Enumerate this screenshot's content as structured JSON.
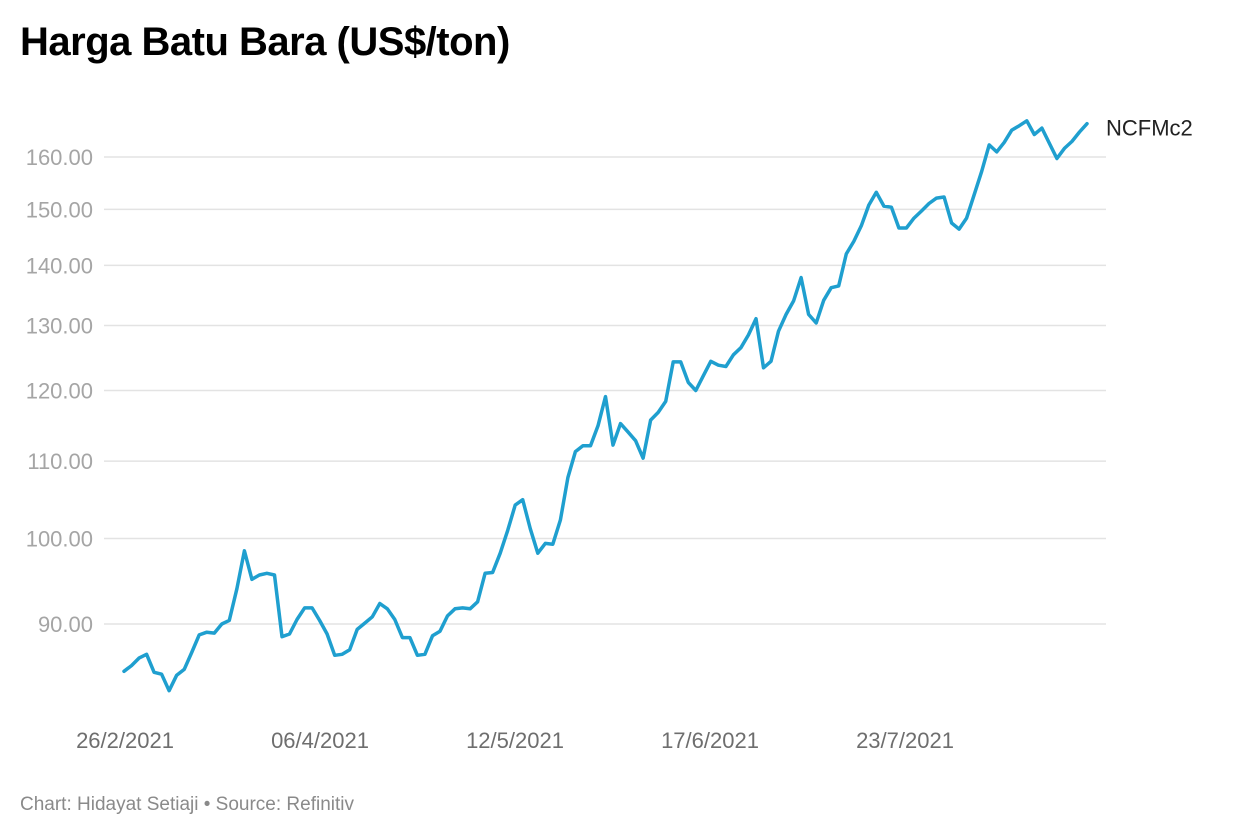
{
  "title": "Harga Batu Bara (US$/ton)",
  "footer": "Chart: Hidayat Setiaji • Source: Refinitiv",
  "chart_data": {
    "type": "line",
    "title": "Harga Batu Bara (US$/ton)",
    "xlabel": "",
    "ylabel": "",
    "y_scale": "log",
    "ylim": [
      82,
      168
    ],
    "grid": true,
    "legend": "none (direct label at line end)",
    "y_ticks": [
      90,
      100,
      110,
      120,
      130,
      140,
      150,
      160
    ],
    "y_tick_labels": [
      "90.00",
      "100.00",
      "110.00",
      "120.00",
      "130.00",
      "140.00",
      "150.00",
      "160.00"
    ],
    "x_tick_labels": [
      "26/2/2021",
      "06/4/2021",
      "12/5/2021",
      "17/6/2021",
      "23/7/2021"
    ],
    "color": "#1f9fcf",
    "series": [
      {
        "name": "NCFMc2",
        "values": [
          84.9,
          85.5,
          86.3,
          86.7,
          84.8,
          84.6,
          82.9,
          84.5,
          85.1,
          86.9,
          88.8,
          89.1,
          89.0,
          90.0,
          90.4,
          94.0,
          98.5,
          95.1,
          95.6,
          95.8,
          95.6,
          88.6,
          88.9,
          90.5,
          91.8,
          91.8,
          90.4,
          88.9,
          86.6,
          86.7,
          87.2,
          89.4,
          90.1,
          90.8,
          92.3,
          91.7,
          90.5,
          88.5,
          88.5,
          86.6,
          86.7,
          88.7,
          89.2,
          90.9,
          91.7,
          91.8,
          91.7,
          92.5,
          95.8,
          95.9,
          98.2,
          101.0,
          104.2,
          104.9,
          101.2,
          98.2,
          99.4,
          99.3,
          102.3,
          107.8,
          111.3,
          112.1,
          112.1,
          114.9,
          119.1,
          112.2,
          115.2,
          114.0,
          112.8,
          110.4,
          115.7,
          116.8,
          118.4,
          124.3,
          124.3,
          121.2,
          120.0,
          122.2,
          124.4,
          123.8,
          123.6,
          125.4,
          126.5,
          128.5,
          131.1,
          123.4,
          124.4,
          129.1,
          131.8,
          134.0,
          137.9,
          131.8,
          130.4,
          134.1,
          136.2,
          136.5,
          142.0,
          144.2,
          147.0,
          150.8,
          153.2,
          150.6,
          150.4,
          146.6,
          146.6,
          148.4,
          149.7,
          151.1,
          152.1,
          152.3,
          147.5,
          146.4,
          148.4,
          152.7,
          157.2,
          162.4,
          161.0,
          162.9,
          165.4,
          166.3,
          167.3,
          164.5,
          165.8,
          162.7,
          159.7,
          161.7,
          163.1,
          165.0,
          166.7
        ]
      }
    ]
  }
}
